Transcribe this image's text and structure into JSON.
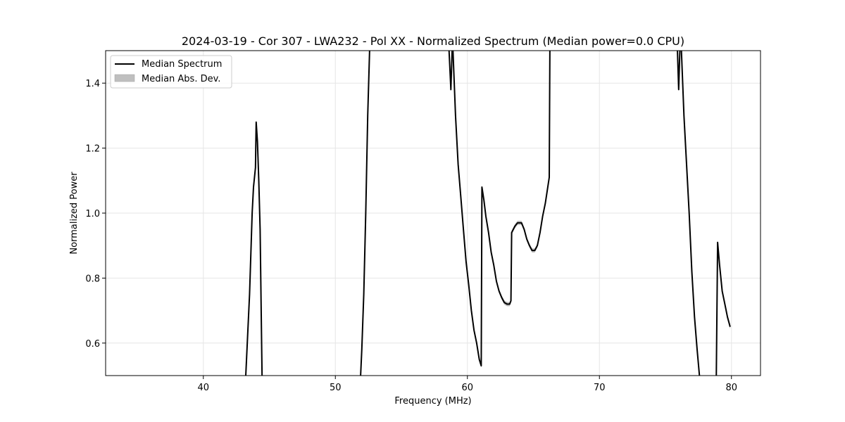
{
  "chart_data": {
    "type": "line",
    "title": "2024-03-19 - Cor 307 - LWA232 - Pol XX - Normalized Spectrum (Median power=0.0 CPU)",
    "xlabel": "Frequency (MHz)",
    "ylabel": "Normalized Power",
    "xlim": [
      32.6,
      82.2
    ],
    "ylim": [
      0.5,
      1.5
    ],
    "xticks": [
      40,
      50,
      60,
      70,
      80
    ],
    "yticks": [
      0.6,
      0.8,
      1.0,
      1.2,
      1.4
    ],
    "grid": true,
    "legend_position": "upper-left",
    "legend": {
      "line_label": "Median Spectrum",
      "band_label": "Median Abs. Dev."
    },
    "colors": {
      "line": "#000000",
      "band": "#bfbfbf",
      "grid": "#e6e6e6"
    },
    "series": [
      {
        "name": "Median Spectrum",
        "segments": [
          [
            [
              43.2,
              0.49
            ],
            [
              43.5,
              0.75
            ],
            [
              43.7,
              1.0
            ],
            [
              43.8,
              1.08
            ],
            [
              43.95,
              1.14
            ],
            [
              44.0,
              1.28
            ],
            [
              44.1,
              1.22
            ],
            [
              44.2,
              1.1
            ],
            [
              44.3,
              0.95
            ],
            [
              44.45,
              0.49
            ]
          ],
          [
            [
              51.9,
              0.49
            ],
            [
              52.0,
              0.58
            ],
            [
              52.15,
              0.75
            ],
            [
              52.3,
              1.0
            ],
            [
              52.45,
              1.3
            ],
            [
              52.6,
              1.51
            ]
          ],
          [
            [
              58.6,
              1.51
            ],
            [
              58.75,
              1.38
            ],
            [
              58.85,
              1.51
            ]
          ],
          [
            [
              58.9,
              1.51
            ],
            [
              59.1,
              1.3
            ],
            [
              59.3,
              1.15
            ],
            [
              59.5,
              1.05
            ],
            [
              59.7,
              0.95
            ],
            [
              59.9,
              0.85
            ],
            [
              60.1,
              0.78
            ],
            [
              60.3,
              0.7
            ],
            [
              60.5,
              0.64
            ],
            [
              60.7,
              0.6
            ],
            [
              60.9,
              0.55
            ],
            [
              61.05,
              0.53
            ],
            [
              61.1,
              1.08
            ],
            [
              61.25,
              1.04
            ],
            [
              61.4,
              0.99
            ],
            [
              61.6,
              0.94
            ],
            [
              61.8,
              0.88
            ],
            [
              62.0,
              0.84
            ],
            [
              62.2,
              0.79
            ],
            [
              62.4,
              0.76
            ],
            [
              62.6,
              0.74
            ],
            [
              62.8,
              0.725
            ],
            [
              63.0,
              0.72
            ],
            [
              63.2,
              0.72
            ],
            [
              63.3,
              0.73
            ],
            [
              63.35,
              0.94
            ],
            [
              63.6,
              0.96
            ],
            [
              63.8,
              0.97
            ],
            [
              64.1,
              0.97
            ],
            [
              64.3,
              0.95
            ],
            [
              64.5,
              0.92
            ],
            [
              64.7,
              0.9
            ],
            [
              64.9,
              0.885
            ],
            [
              65.1,
              0.885
            ],
            [
              65.3,
              0.9
            ],
            [
              65.5,
              0.94
            ],
            [
              65.7,
              0.99
            ],
            [
              65.9,
              1.03
            ],
            [
              66.05,
              1.07
            ],
            [
              66.2,
              1.11
            ],
            [
              66.25,
              1.51
            ]
          ],
          [
            [
              75.9,
              1.51
            ],
            [
              76.0,
              1.38
            ],
            [
              76.1,
              1.51
            ]
          ],
          [
            [
              76.2,
              1.51
            ],
            [
              76.4,
              1.3
            ],
            [
              76.6,
              1.15
            ],
            [
              76.8,
              1.0
            ],
            [
              77.0,
              0.82
            ],
            [
              77.2,
              0.68
            ],
            [
              77.4,
              0.58
            ],
            [
              77.6,
              0.49
            ]
          ],
          [
            [
              78.85,
              0.49
            ],
            [
              78.95,
              0.91
            ],
            [
              79.1,
              0.84
            ],
            [
              79.3,
              0.76
            ],
            [
              79.5,
              0.72
            ],
            [
              79.7,
              0.68
            ],
            [
              79.9,
              0.65
            ]
          ]
        ]
      }
    ]
  }
}
